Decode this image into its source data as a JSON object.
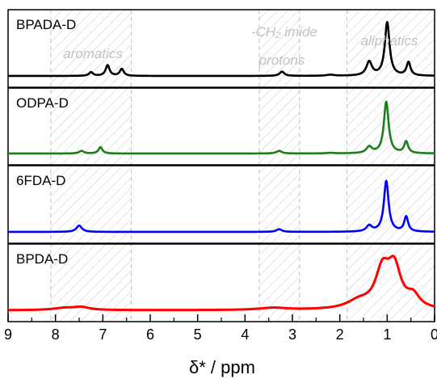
{
  "chart_data": {
    "type": "line",
    "xlabel": "δ* / ppm",
    "xlim": [
      9,
      0
    ],
    "x_reversed": true,
    "xticks": [
      "9",
      "8",
      "7",
      "6",
      "5",
      "4",
      "3",
      "2",
      "1",
      "0"
    ],
    "xtick_values": [
      9,
      8,
      7,
      6,
      5,
      4,
      3,
      2,
      1,
      0
    ],
    "regions": [
      {
        "label": "aromatics",
        "from": 8.1,
        "to": 6.4
      },
      {
        "label": "-CH₂ imide",
        "label2": "protons",
        "from": 3.7,
        "to": 2.85
      },
      {
        "label": "aliphatics",
        "from": 1.85,
        "to": 0
      }
    ],
    "panels": [
      {
        "label": "BPADA-D",
        "color": "#000000",
        "baseline": 0.03,
        "peaks": [
          {
            "x": 7.25,
            "h": 0.07,
            "w": 0.05
          },
          {
            "x": 6.9,
            "h": 0.2,
            "w": 0.05
          },
          {
            "x": 6.6,
            "h": 0.13,
            "w": 0.05
          },
          {
            "x": 3.22,
            "h": 0.08,
            "w": 0.06
          },
          {
            "x": 2.2,
            "h": 0.02,
            "w": 0.1
          },
          {
            "x": 1.38,
            "h": 0.26,
            "w": 0.07
          },
          {
            "x": 1.0,
            "h": 1.0,
            "w": 0.06
          },
          {
            "x": 0.55,
            "h": 0.25,
            "w": 0.05
          }
        ]
      },
      {
        "label": "ODPA-D",
        "color": "#1a7f1a",
        "baseline": 0.03,
        "peaks": [
          {
            "x": 7.45,
            "h": 0.05,
            "w": 0.06
          },
          {
            "x": 7.05,
            "h": 0.12,
            "w": 0.05
          },
          {
            "x": 3.28,
            "h": 0.05,
            "w": 0.07
          },
          {
            "x": 2.2,
            "h": 0.01,
            "w": 0.1
          },
          {
            "x": 1.38,
            "h": 0.12,
            "w": 0.07
          },
          {
            "x": 1.02,
            "h": 0.98,
            "w": 0.06
          },
          {
            "x": 0.6,
            "h": 0.22,
            "w": 0.05
          }
        ]
      },
      {
        "label": "6FDA-D",
        "color": "#0000ff",
        "baseline": 0.03,
        "peaks": [
          {
            "x": 7.5,
            "h": 0.12,
            "w": 0.07
          },
          {
            "x": 3.28,
            "h": 0.05,
            "w": 0.07
          },
          {
            "x": 1.38,
            "h": 0.11,
            "w": 0.07
          },
          {
            "x": 1.02,
            "h": 0.95,
            "w": 0.06
          },
          {
            "x": 0.6,
            "h": 0.28,
            "w": 0.05
          }
        ]
      },
      {
        "label": "BPDA-D",
        "color": "#ff0000",
        "baseline": 0.03,
        "peaks": [
          {
            "x": 7.8,
            "h": 0.04,
            "w": 0.3
          },
          {
            "x": 7.45,
            "h": 0.05,
            "w": 0.2
          },
          {
            "x": 3.4,
            "h": 0.04,
            "w": 0.35
          },
          {
            "x": 1.6,
            "h": 0.14,
            "w": 0.3
          },
          {
            "x": 1.1,
            "h": 0.68,
            "w": 0.18
          },
          {
            "x": 0.85,
            "h": 0.72,
            "w": 0.17
          },
          {
            "x": 0.45,
            "h": 0.22,
            "w": 0.16
          }
        ]
      }
    ]
  }
}
